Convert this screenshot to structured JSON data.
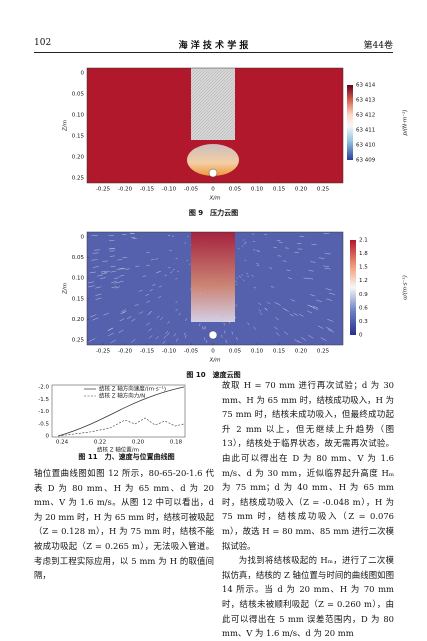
{
  "header": {
    "page": "102",
    "journal": "海 洋 技 术 学 报",
    "volume": "第44卷"
  },
  "figures": [
    {
      "y_label": "Z/m",
      "x_label": "X/m",
      "yticks": [
        "0",
        "0.05",
        "0.10",
        "0.15",
        "0.20",
        "0.25"
      ],
      "xticks": [
        "-0.25",
        "-0.20",
        "-0.15",
        "-0.10",
        "-0.05",
        "0",
        "0.05",
        "0.10",
        "0.15",
        "0.20",
        "0.25"
      ],
      "colorbar_ticks": [
        "63 414",
        "63 413",
        "63 412",
        "63 411",
        "63 410",
        "63 409"
      ],
      "colorbar_label": "p/(N·m⁻²)",
      "caption": "图 9　压力云图"
    },
    {
      "y_label": "Z/m",
      "x_label": "X/m",
      "yticks": [
        "0",
        "0.05",
        "0.10",
        "0.15",
        "0.20",
        "0.25"
      ],
      "xticks": [
        "-0.25",
        "-0.20",
        "-0.15",
        "-0.10",
        "-0.05",
        "0",
        "0.05",
        "0.10",
        "0.15",
        "0.20",
        "0.25"
      ],
      "colorbar_ticks": [
        "2.1",
        "1.8",
        "1.5",
        "1.2",
        "0.9",
        "0.6",
        "0.3",
        "0"
      ],
      "colorbar_label": "u/(m·s⁻¹)",
      "caption": "图 10　速度云图"
    },
    {
      "yticks": [
        "-2.0",
        "-1.5",
        "-1.0",
        "-0.5",
        "0"
      ],
      "xticks": [
        "0.24",
        "0.22",
        "0.20",
        "0.18"
      ],
      "legend": [
        "结核 Z 轴方向速度/(m·s⁻¹)",
        "结核 Z 轴方向力/N"
      ],
      "x_label": "结核 Z 轴位置/m",
      "caption": "图 11　力、速度与位置曲线图"
    }
  ],
  "left_text": "轴位置曲线图如图 12 所示，80-65-20-1.6 代表 D 为 80 mm、H 为 65 mm、d 为 20 mm、V 为 1.6 m/s。从图 12 中可以看出，d 为 20 mm 时，H 为 65 mm 时，结核可被吸起（Z = 0.128 m），H 为 75 mm 时，结核不能被成功吸起（Z = 0.265 m），无法吸入管道。考虑到工程实际应用，以 5 mm 为 H 的取值间隔，",
  "right_text": [
    "故取 H = 70 mm 进行再次试验；d 为 30 mm、H 为 65 mm 时，结核成功吸入，H 为 75 mm 时，结核未成功吸入，但最终成功起升 2 mm 以上，但无继续上升趋势（图 13），结核处于临界状态，故无需再次试验。由此可以得出在 D 为 80 mm、V 为 1.6 m/s、d 为 30 mm，近似临界起升高度 Hₘ 为 75 mm；d 为 40 mm、H 为 65 mm 时，结核成功吸入（Z = -0.048 m），H 为 75 mm 时，结核成功吸入（Z = 0.076 m），故选 H = 80 mm、85 mm 进行二次模拟试验。",
    "为找到将结核吸起的 Hₘ，进行了二次模拟仿真，结核的 Z 轴位置与时间的曲线图如图 14 所示。当 d 为 20 mm、H 为 70 mm 时，结核未被顺利吸起（Z = 0.260 m），由此可以得出在 5 mm 误差范围内，D 为 80 mm、V 为 1.6 m/s、d 为 20 mm"
  ]
}
